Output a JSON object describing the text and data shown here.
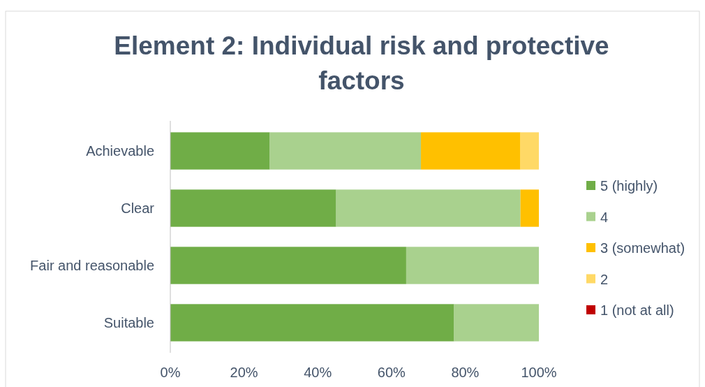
{
  "chart_data": {
    "type": "bar",
    "title": "Element 2: Individual risk and protective factors",
    "orientation": "horizontal",
    "stacked": true,
    "categories": [
      "Achievable",
      "Clear",
      "Fair and reasonable",
      "Suitable"
    ],
    "series": [
      {
        "name": "5 (highly)",
        "color": "#70ad47",
        "values": [
          27,
          45,
          64,
          77
        ]
      },
      {
        "name": "4",
        "color": "#a9d18e",
        "values": [
          41,
          50,
          36,
          23
        ]
      },
      {
        "name": "3 (somewhat)",
        "color": "#ffc000",
        "values": [
          27,
          5,
          0,
          0
        ]
      },
      {
        "name": "2",
        "color": "#ffd966",
        "values": [
          5,
          0,
          0,
          0
        ]
      },
      {
        "name": "1 (not at all)",
        "color": "#c00000",
        "values": [
          0,
          0,
          0,
          0
        ]
      }
    ],
    "xlim": [
      0,
      100
    ],
    "xticks": [
      {
        "value": 0,
        "label": "0%"
      },
      {
        "value": 20,
        "label": "20%"
      },
      {
        "value": 40,
        "label": "40%"
      },
      {
        "value": 60,
        "label": "60%"
      },
      {
        "value": 80,
        "label": "80%"
      },
      {
        "value": 100,
        "label": "100%"
      }
    ],
    "grid": false,
    "legend": "right"
  }
}
